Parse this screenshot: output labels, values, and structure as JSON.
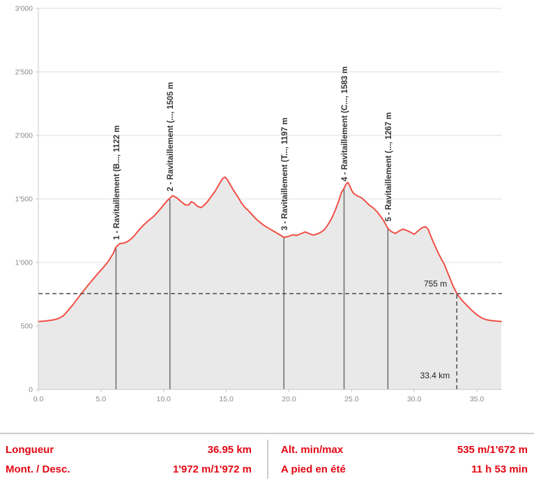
{
  "colors": {
    "line": "#f14f46",
    "fill": "#e9e9e9",
    "grid": "#dcdcdc",
    "axis": "#c8c8c8",
    "tick_text": "#8a8a8a",
    "checkpoint_line": "#6b6b6b",
    "checkpoint_text": "#333333",
    "crosshair": "#4a4a4a",
    "crosshair_text": "#222222",
    "stats_text": "#e30613"
  },
  "chart_data": {
    "type": "area",
    "title": "",
    "xlabel": "",
    "ylabel": "",
    "xlim": [
      0,
      37.0
    ],
    "ylim": [
      0,
      3000
    ],
    "grid": true,
    "x_ticks": [
      0,
      5,
      10,
      15,
      20,
      25,
      30,
      35
    ],
    "x_tick_labels": [
      "0.0",
      "5.0",
      "10.0",
      "15.0",
      "20.0",
      "25.0",
      "30.0",
      "35.0"
    ],
    "y_ticks": [
      0,
      500,
      1000,
      1500,
      2000,
      2500,
      3000
    ],
    "y_tick_labels": [
      "0",
      "500",
      "1'000",
      "1'500",
      "2'000",
      "2'500",
      "3'000"
    ],
    "series": [
      {
        "name": "elevation-profile",
        "points": [
          [
            0,
            535
          ],
          [
            0.4,
            538
          ],
          [
            0.8,
            542
          ],
          [
            1.2,
            548
          ],
          [
            1.6,
            558
          ],
          [
            2,
            580
          ],
          [
            2.4,
            625
          ],
          [
            2.8,
            672
          ],
          [
            3.2,
            725
          ],
          [
            3.6,
            775
          ],
          [
            4,
            825
          ],
          [
            4.4,
            872
          ],
          [
            4.8,
            918
          ],
          [
            5.2,
            962
          ],
          [
            5.6,
            1010
          ],
          [
            6,
            1075
          ],
          [
            6.2,
            1122
          ],
          [
            6.5,
            1148
          ],
          [
            6.8,
            1152
          ],
          [
            7.1,
            1163
          ],
          [
            7.4,
            1185
          ],
          [
            7.7,
            1215
          ],
          [
            8,
            1252
          ],
          [
            8.4,
            1295
          ],
          [
            8.8,
            1330
          ],
          [
            9.2,
            1362
          ],
          [
            9.6,
            1405
          ],
          [
            10,
            1452
          ],
          [
            10.3,
            1488
          ],
          [
            10.5,
            1505
          ],
          [
            10.7,
            1525
          ],
          [
            10.9,
            1518
          ],
          [
            11.1,
            1505
          ],
          [
            11.4,
            1478
          ],
          [
            11.7,
            1455
          ],
          [
            12,
            1452
          ],
          [
            12.2,
            1478
          ],
          [
            12.4,
            1470
          ],
          [
            12.7,
            1442
          ],
          [
            13,
            1432
          ],
          [
            13.2,
            1448
          ],
          [
            13.5,
            1478
          ],
          [
            13.8,
            1520
          ],
          [
            14.1,
            1560
          ],
          [
            14.4,
            1610
          ],
          [
            14.7,
            1660
          ],
          [
            14.9,
            1672
          ],
          [
            15.1,
            1650
          ],
          [
            15.3,
            1615
          ],
          [
            15.6,
            1565
          ],
          [
            15.9,
            1520
          ],
          [
            16.2,
            1470
          ],
          [
            16.5,
            1432
          ],
          [
            16.8,
            1405
          ],
          [
            17.1,
            1372
          ],
          [
            17.4,
            1340
          ],
          [
            17.7,
            1315
          ],
          [
            18,
            1292
          ],
          [
            18.4,
            1268
          ],
          [
            18.8,
            1245
          ],
          [
            19.2,
            1222
          ],
          [
            19.6,
            1197
          ],
          [
            20,
            1206
          ],
          [
            20.3,
            1218
          ],
          [
            20.6,
            1212
          ],
          [
            21,
            1228
          ],
          [
            21.3,
            1240
          ],
          [
            21.6,
            1228
          ],
          [
            21.9,
            1216
          ],
          [
            22.2,
            1222
          ],
          [
            22.5,
            1235
          ],
          [
            22.8,
            1255
          ],
          [
            23.1,
            1295
          ],
          [
            23.4,
            1345
          ],
          [
            23.7,
            1412
          ],
          [
            24,
            1492
          ],
          [
            24.2,
            1552
          ],
          [
            24.4,
            1583
          ],
          [
            24.55,
            1615
          ],
          [
            24.7,
            1630
          ],
          [
            24.85,
            1605
          ],
          [
            25,
            1568
          ],
          [
            25.2,
            1540
          ],
          [
            25.5,
            1522
          ],
          [
            25.8,
            1508
          ],
          [
            26.1,
            1482
          ],
          [
            26.4,
            1452
          ],
          [
            26.7,
            1432
          ],
          [
            27,
            1402
          ],
          [
            27.3,
            1365
          ],
          [
            27.6,
            1322
          ],
          [
            27.9,
            1267
          ],
          [
            28.2,
            1242
          ],
          [
            28.5,
            1228
          ],
          [
            28.8,
            1248
          ],
          [
            29.1,
            1262
          ],
          [
            29.4,
            1252
          ],
          [
            29.7,
            1238
          ],
          [
            30,
            1222
          ],
          [
            30.3,
            1248
          ],
          [
            30.6,
            1272
          ],
          [
            30.9,
            1282
          ],
          [
            31.1,
            1262
          ],
          [
            31.4,
            1188
          ],
          [
            31.7,
            1122
          ],
          [
            32,
            1058
          ],
          [
            32.4,
            985
          ],
          [
            32.8,
            888
          ],
          [
            33.1,
            815
          ],
          [
            33.4,
            755
          ],
          [
            33.8,
            702
          ],
          [
            34.2,
            662
          ],
          [
            34.6,
            622
          ],
          [
            35,
            588
          ],
          [
            35.4,
            562
          ],
          [
            35.8,
            548
          ],
          [
            36.2,
            542
          ],
          [
            36.6,
            538
          ],
          [
            36.95,
            535
          ]
        ]
      }
    ],
    "checkpoints": [
      {
        "km": 6.2,
        "elev": 1122,
        "label": "1 - Ravitaillement (B..., 1122 m"
      },
      {
        "km": 10.5,
        "elev": 1505,
        "label": "2 - Ravitaillement (..., 1505 m"
      },
      {
        "km": 19.6,
        "elev": 1197,
        "label": "3 - Ravitaillement (T..., 1197 m"
      },
      {
        "km": 24.4,
        "elev": 1583,
        "label": "4 - Ravitaillement (C..., 1583 m"
      },
      {
        "km": 27.9,
        "elev": 1267,
        "label": "5 - Ravitaillement (..., 1267 m"
      }
    ],
    "crosshair": {
      "km": 33.4,
      "elev": 755,
      "km_label": "33.4 km",
      "elev_label": "755 m"
    }
  },
  "stats": {
    "rows_left": [
      {
        "label": "Longueur",
        "value": "36.95 km"
      },
      {
        "label": "Mont. / Desc.",
        "value": "1'972 m/1'972 m"
      }
    ],
    "rows_right": [
      {
        "label": "Alt. min/max",
        "value": "535 m/1'672 m"
      },
      {
        "label": "A pied en été",
        "value": "11 h 53 min"
      }
    ]
  }
}
